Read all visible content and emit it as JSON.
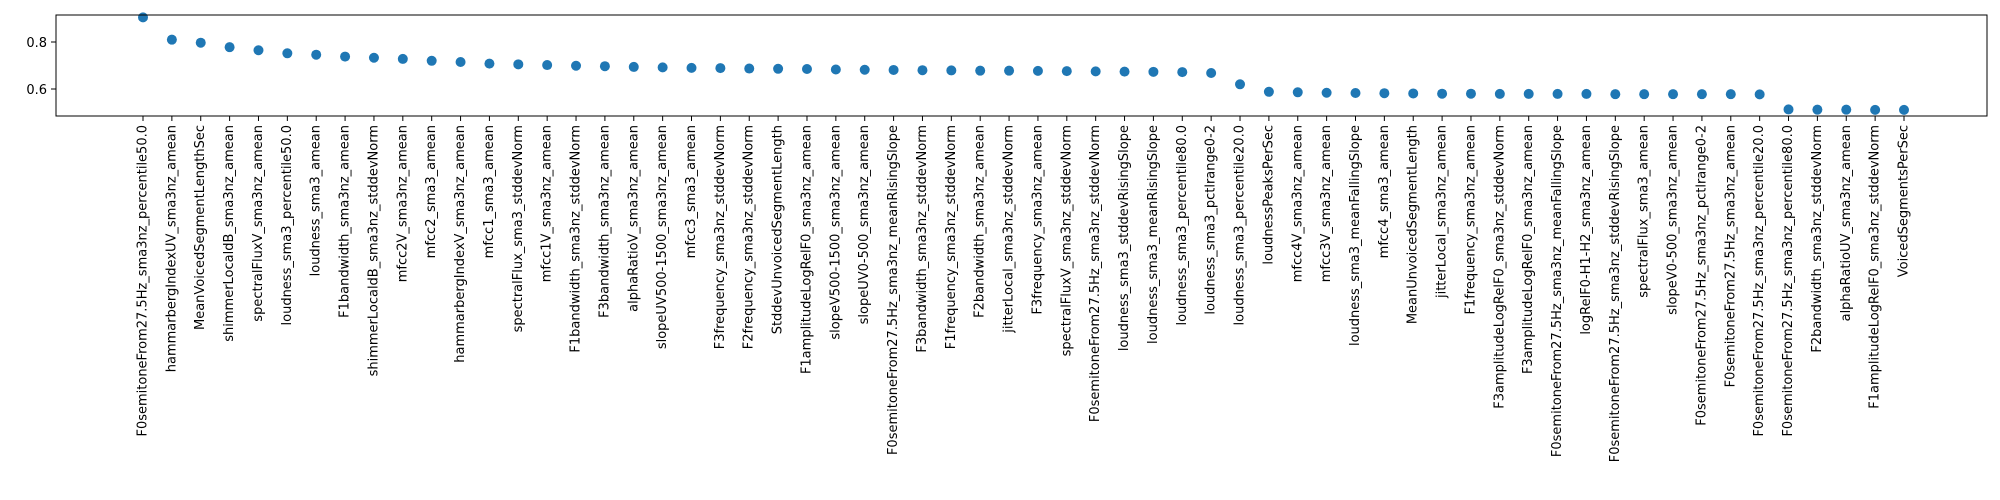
{
  "chart_data": {
    "type": "scatter",
    "title": "",
    "xlabel": "",
    "ylabel": "",
    "ylim": [
      0.485,
      0.915
    ],
    "yticks": [
      0.6,
      0.8
    ],
    "ytick_labels": [
      "0.6",
      "0.8"
    ],
    "grid": false,
    "marker_color": "#1f77b4",
    "categories": [
      "F0semitoneFrom27.5Hz_sma3nz_percentile50.0",
      "hammarbergIndexUV_sma3nz_amean",
      "MeanVoicedSegmentLengthSec",
      "shimmerLocaldB_sma3nz_amean",
      "spectralFluxV_sma3nz_amean",
      "loudness_sma3_percentile50.0",
      "loudness_sma3_amean",
      "F1bandwidth_sma3nz_amean",
      "shimmerLocaldB_sma3nz_stddevNorm",
      "mfcc2V_sma3nz_amean",
      "mfcc2_sma3_amean",
      "hammarbergIndexV_sma3nz_amean",
      "mfcc1_sma3_amean",
      "spectralFlux_sma3_stddevNorm",
      "mfcc1V_sma3nz_amean",
      "F1bandwidth_sma3nz_stddevNorm",
      "F3bandwidth_sma3nz_amean",
      "alphaRatioV_sma3nz_amean",
      "slopeUV500-1500_sma3nz_amean",
      "mfcc3_sma3_amean",
      "F3frequency_sma3nz_stddevNorm",
      "F2frequency_sma3nz_stddevNorm",
      "StddevUnvoicedSegmentLength",
      "F1amplitudeLogRelF0_sma3nz_amean",
      "slopeV500-1500_sma3nz_amean",
      "slopeUV0-500_sma3nz_amean",
      "F0semitoneFrom27.5Hz_sma3nz_meanRisingSlope",
      "F3bandwidth_sma3nz_stddevNorm",
      "F1frequency_sma3nz_stddevNorm",
      "F2bandwidth_sma3nz_amean",
      "jitterLocal_sma3nz_stddevNorm",
      "F3frequency_sma3nz_amean",
      "spectralFluxV_sma3nz_stddevNorm",
      "F0semitoneFrom27.5Hz_sma3nz_stddevNorm",
      "loudness_sma3_stddevRisingSlope",
      "loudness_sma3_meanRisingSlope",
      "loudness_sma3_percentile80.0",
      "loudness_sma3_pctlrange0-2",
      "loudness_sma3_percentile20.0",
      "loudnessPeaksPerSec",
      "mfcc4V_sma3nz_amean",
      "mfcc3V_sma3nz_amean",
      "loudness_sma3_meanFallingSlope",
      "mfcc4_sma3_amean",
      "MeanUnvoicedSegmentLength",
      "jitterLocal_sma3nz_amean",
      "F1frequency_sma3nz_amean",
      "F3amplitudeLogRelF0_sma3nz_stddevNorm",
      "F3amplitudeLogRelF0_sma3nz_amean",
      "F0semitoneFrom27.5Hz_sma3nz_meanFallingSlope",
      "logRelF0-H1-H2_sma3nz_amean",
      "F0semitoneFrom27.5Hz_sma3nz_stddevRisingSlope",
      "spectralFlux_sma3_amean",
      "slopeV0-500_sma3nz_amean",
      "F0semitoneFrom27.5Hz_sma3nz_pctlrange0-2",
      "F0semitoneFrom27.5Hz_sma3nz_amean",
      "F0semitoneFrom27.5Hz_sma3nz_percentile20.0",
      "F0semitoneFrom27.5Hz_sma3nz_percentile80.0",
      "F2bandwidth_sma3nz_stddevNorm",
      "alphaRatioUV_sma3nz_amean",
      "F1amplitudeLogRelF0_sma3nz_stddevNorm",
      "VoicedSegmentsPerSec"
    ],
    "values": [
      0.905,
      0.81,
      0.797,
      0.778,
      0.765,
      0.752,
      0.746,
      0.738,
      0.733,
      0.728,
      0.72,
      0.715,
      0.708,
      0.705,
      0.702,
      0.699,
      0.697,
      0.694,
      0.692,
      0.69,
      0.689,
      0.687,
      0.686,
      0.685,
      0.683,
      0.682,
      0.681,
      0.68,
      0.679,
      0.678,
      0.678,
      0.677,
      0.676,
      0.675,
      0.674,
      0.673,
      0.672,
      0.668,
      0.62,
      0.588,
      0.586,
      0.584,
      0.583,
      0.582,
      0.581,
      0.58,
      0.58,
      0.579,
      0.579,
      0.579,
      0.579,
      0.578,
      0.578,
      0.578,
      0.578,
      0.578,
      0.577,
      0.513,
      0.512,
      0.512,
      0.511,
      0.511
    ]
  }
}
